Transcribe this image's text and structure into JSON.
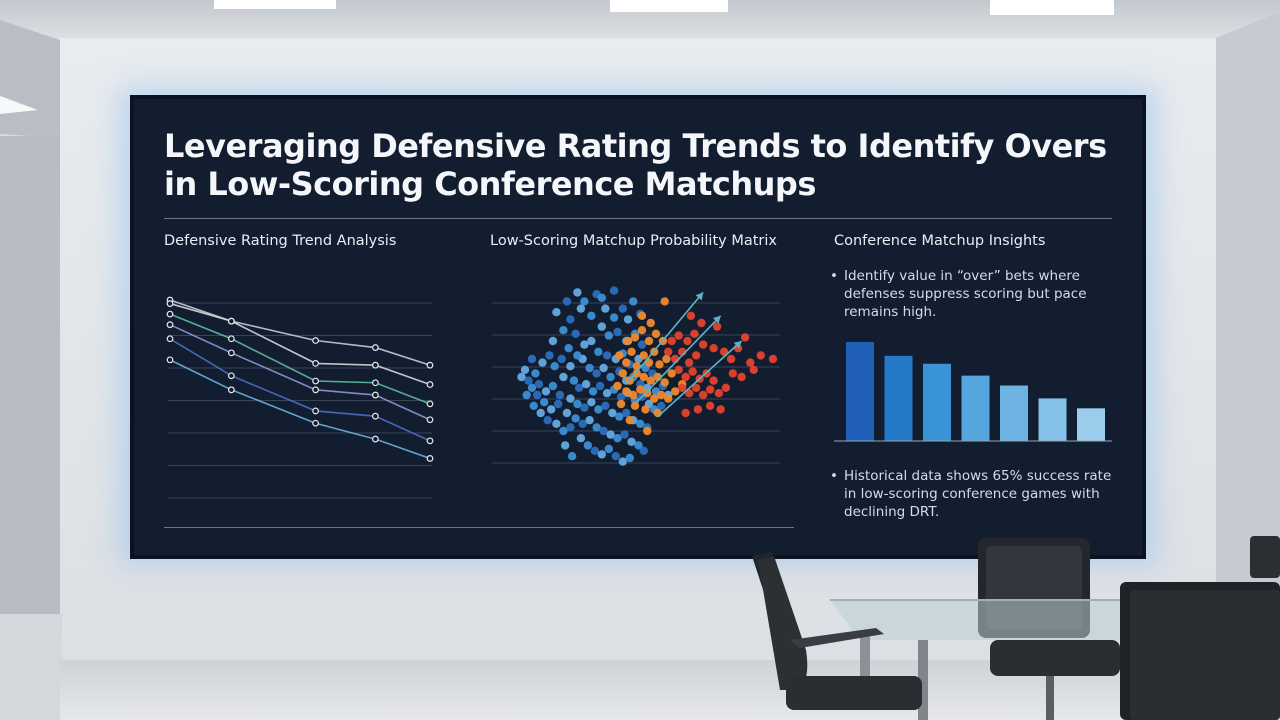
{
  "slide": {
    "title_line1": "Leveraging Defensive Rating Trends to Identify Overs",
    "title_line2": "in Low-Scoring Conference Matchups"
  },
  "panels": {
    "trend_heading": "Defensive Rating Trend Analysis",
    "matrix_heading": "Low-Scoring Matchup Probability Matrix",
    "insights_heading": "Conference Matchup Insights"
  },
  "insights": {
    "bullet_1": "Identify value in “over” bets where defenses suppress scoring but pace remains high.",
    "bullet_2": "Historical data shows 65% success rate in low-scoring conference games with declining DRT."
  },
  "colors": {
    "screen_bg": "#131d30",
    "line_series": [
      "#c9ccd3",
      "#d7d7db",
      "#5dbf9e",
      "#8b98d8",
      "#4f6fc8",
      "#6bb0e0"
    ],
    "scatter_cool": "#3d8fd6",
    "scatter_mid": "#f08a2c",
    "scatter_hot": "#e2432e",
    "arrow": "#5bb4c9",
    "bars": [
      "#1f5fb8",
      "#2478c8",
      "#3a93d6",
      "#55a5de",
      "#6cb3e4",
      "#86c1ea",
      "#9ccceb"
    ]
  },
  "chart_data": [
    {
      "type": "line",
      "x": [
        1,
        2,
        3,
        4,
        5
      ],
      "series": [
        {
          "values": [
            9.6,
            8.4,
            7.3,
            6.9,
            5.9
          ]
        },
        {
          "values": [
            9.4,
            8.4,
            6.0,
            5.9,
            4.8
          ]
        },
        {
          "values": [
            8.8,
            7.4,
            5.0,
            4.9,
            3.7
          ]
        },
        {
          "values": [
            8.2,
            6.6,
            4.5,
            4.2,
            2.8
          ]
        },
        {
          "values": [
            7.4,
            5.3,
            3.3,
            3.0,
            1.6
          ]
        },
        {
          "values": [
            6.2,
            4.5,
            2.6,
            1.7,
            0.6
          ]
        }
      ],
      "ylim": [
        0,
        10
      ],
      "grid": true
    },
    {
      "type": "scatter",
      "points": [
        {
          "x": 0.34,
          "y": 0.97,
          "g": "cool"
        },
        {
          "x": 0.38,
          "y": 0.92,
          "g": "cool"
        },
        {
          "x": 0.45,
          "y": 0.96,
          "g": "cool"
        },
        {
          "x": 0.5,
          "y": 0.88,
          "g": "cool"
        },
        {
          "x": 0.55,
          "y": 0.83,
          "g": "cool"
        },
        {
          "x": 0.6,
          "y": 0.88,
          "g": "cool"
        },
        {
          "x": 0.63,
          "y": 0.82,
          "g": "cool"
        },
        {
          "x": 0.66,
          "y": 0.92,
          "g": "cool"
        },
        {
          "x": 0.7,
          "y": 0.85,
          "g": "cool"
        },
        {
          "x": 0.48,
          "y": 0.78,
          "g": "cool"
        },
        {
          "x": 0.52,
          "y": 0.73,
          "g": "cool"
        },
        {
          "x": 0.57,
          "y": 0.75,
          "g": "cool"
        },
        {
          "x": 0.62,
          "y": 0.7,
          "g": "cool"
        },
        {
          "x": 0.67,
          "y": 0.74,
          "g": "cool"
        },
        {
          "x": 0.71,
          "y": 0.68,
          "g": "cool"
        },
        {
          "x": 0.42,
          "y": 0.7,
          "g": "cool"
        },
        {
          "x": 0.46,
          "y": 0.64,
          "g": "cool"
        },
        {
          "x": 0.51,
          "y": 0.62,
          "g": "cool"
        },
        {
          "x": 0.56,
          "y": 0.6,
          "g": "cool"
        },
        {
          "x": 0.6,
          "y": 0.63,
          "g": "cool"
        },
        {
          "x": 0.64,
          "y": 0.57,
          "g": "cool"
        },
        {
          "x": 0.69,
          "y": 0.6,
          "g": "cool"
        },
        {
          "x": 0.73,
          "y": 0.55,
          "g": "cool"
        },
        {
          "x": 0.77,
          "y": 0.52,
          "g": "cool"
        },
        {
          "x": 0.37,
          "y": 0.6,
          "g": "cool"
        },
        {
          "x": 0.41,
          "y": 0.55,
          "g": "cool"
        },
        {
          "x": 0.45,
          "y": 0.52,
          "g": "cool"
        },
        {
          "x": 0.49,
          "y": 0.55,
          "g": "cool"
        },
        {
          "x": 0.53,
          "y": 0.5,
          "g": "cool"
        },
        {
          "x": 0.58,
          "y": 0.53,
          "g": "cool"
        },
        {
          "x": 0.62,
          "y": 0.48,
          "g": "cool"
        },
        {
          "x": 0.66,
          "y": 0.5,
          "g": "cool"
        },
        {
          "x": 0.7,
          "y": 0.46,
          "g": "cool"
        },
        {
          "x": 0.74,
          "y": 0.44,
          "g": "cool"
        },
        {
          "x": 0.79,
          "y": 0.42,
          "g": "cool"
        },
        {
          "x": 0.83,
          "y": 0.45,
          "g": "cool"
        },
        {
          "x": 0.86,
          "y": 0.4,
          "g": "cool"
        },
        {
          "x": 0.32,
          "y": 0.48,
          "g": "cool"
        },
        {
          "x": 0.35,
          "y": 0.44,
          "g": "cool"
        },
        {
          "x": 0.39,
          "y": 0.46,
          "g": "cool"
        },
        {
          "x": 0.43,
          "y": 0.42,
          "g": "cool"
        },
        {
          "x": 0.47,
          "y": 0.45,
          "g": "cool"
        },
        {
          "x": 0.51,
          "y": 0.41,
          "g": "cool"
        },
        {
          "x": 0.55,
          "y": 0.43,
          "g": "cool"
        },
        {
          "x": 0.59,
          "y": 0.39,
          "g": "cool"
        },
        {
          "x": 0.63,
          "y": 0.41,
          "g": "cool"
        },
        {
          "x": 0.67,
          "y": 0.37,
          "g": "cool"
        },
        {
          "x": 0.71,
          "y": 0.39,
          "g": "cool"
        },
        {
          "x": 0.75,
          "y": 0.35,
          "g": "cool"
        },
        {
          "x": 0.78,
          "y": 0.32,
          "g": "cool"
        },
        {
          "x": 0.82,
          "y": 0.34,
          "g": "cool"
        },
        {
          "x": 0.3,
          "y": 0.38,
          "g": "cool"
        },
        {
          "x": 0.34,
          "y": 0.35,
          "g": "cool"
        },
        {
          "x": 0.38,
          "y": 0.33,
          "g": "cool"
        },
        {
          "x": 0.42,
          "y": 0.36,
          "g": "cool"
        },
        {
          "x": 0.46,
          "y": 0.32,
          "g": "cool"
        },
        {
          "x": 0.5,
          "y": 0.34,
          "g": "cool"
        },
        {
          "x": 0.54,
          "y": 0.3,
          "g": "cool"
        },
        {
          "x": 0.58,
          "y": 0.28,
          "g": "cool"
        },
        {
          "x": 0.62,
          "y": 0.3,
          "g": "cool"
        },
        {
          "x": 0.66,
          "y": 0.26,
          "g": "cool"
        },
        {
          "x": 0.7,
          "y": 0.24,
          "g": "cool"
        },
        {
          "x": 0.74,
          "y": 0.22,
          "g": "cool"
        },
        {
          "x": 0.28,
          "y": 0.3,
          "g": "cool"
        },
        {
          "x": 0.33,
          "y": 0.27,
          "g": "cool"
        },
        {
          "x": 0.37,
          "y": 0.24,
          "g": "cool"
        },
        {
          "x": 0.41,
          "y": 0.26,
          "g": "cool"
        },
        {
          "x": 0.45,
          "y": 0.22,
          "g": "cool"
        },
        {
          "x": 0.49,
          "y": 0.2,
          "g": "cool"
        },
        {
          "x": 0.53,
          "y": 0.18,
          "g": "cool"
        },
        {
          "x": 0.57,
          "y": 0.16,
          "g": "cool"
        },
        {
          "x": 0.61,
          "y": 0.18,
          "g": "cool"
        },
        {
          "x": 0.65,
          "y": 0.14,
          "g": "cool"
        },
        {
          "x": 0.69,
          "y": 0.12,
          "g": "cool"
        },
        {
          "x": 0.72,
          "y": 0.09,
          "g": "cool"
        },
        {
          "x": 0.36,
          "y": 0.16,
          "g": "cool"
        },
        {
          "x": 0.4,
          "y": 0.12,
          "g": "cool"
        },
        {
          "x": 0.44,
          "y": 0.09,
          "g": "cool"
        },
        {
          "x": 0.48,
          "y": 0.07,
          "g": "cool"
        },
        {
          "x": 0.52,
          "y": 0.1,
          "g": "cool"
        },
        {
          "x": 0.56,
          "y": 0.06,
          "g": "cool"
        },
        {
          "x": 0.6,
          "y": 0.03,
          "g": "cool"
        },
        {
          "x": 0.64,
          "y": 0.05,
          "g": "cool"
        },
        {
          "x": 0.24,
          "y": 0.4,
          "g": "cool"
        },
        {
          "x": 0.26,
          "y": 0.5,
          "g": "cool"
        },
        {
          "x": 0.21,
          "y": 0.56,
          "g": "cool"
        },
        {
          "x": 0.18,
          "y": 0.62,
          "g": "cool"
        },
        {
          "x": 0.14,
          "y": 0.58,
          "g": "cool"
        },
        {
          "x": 0.1,
          "y": 0.52,
          "g": "cool"
        },
        {
          "x": 0.06,
          "y": 0.48,
          "g": "cool"
        },
        {
          "x": 0.04,
          "y": 0.54,
          "g": "cool"
        },
        {
          "x": 0.08,
          "y": 0.44,
          "g": "cool"
        },
        {
          "x": 0.12,
          "y": 0.46,
          "g": "cool"
        },
        {
          "x": 0.16,
          "y": 0.42,
          "g": "cool"
        },
        {
          "x": 0.2,
          "y": 0.45,
          "g": "cool"
        },
        {
          "x": 0.23,
          "y": 0.35,
          "g": "cool"
        },
        {
          "x": 0.19,
          "y": 0.32,
          "g": "cool"
        },
        {
          "x": 0.15,
          "y": 0.36,
          "g": "cool"
        },
        {
          "x": 0.11,
          "y": 0.4,
          "g": "cool"
        },
        {
          "x": 0.13,
          "y": 0.3,
          "g": "cool"
        },
        {
          "x": 0.09,
          "y": 0.34,
          "g": "cool"
        },
        {
          "x": 0.17,
          "y": 0.26,
          "g": "cool"
        },
        {
          "x": 0.22,
          "y": 0.24,
          "g": "cool"
        },
        {
          "x": 0.26,
          "y": 0.2,
          "g": "cool"
        },
        {
          "x": 0.3,
          "y": 0.22,
          "g": "cool"
        },
        {
          "x": 0.2,
          "y": 0.7,
          "g": "cool"
        },
        {
          "x": 0.26,
          "y": 0.76,
          "g": "cool"
        },
        {
          "x": 0.3,
          "y": 0.82,
          "g": "cool"
        },
        {
          "x": 0.36,
          "y": 0.88,
          "g": "cool"
        },
        {
          "x": 0.42,
          "y": 0.84,
          "g": "cool"
        },
        {
          "x": 0.33,
          "y": 0.74,
          "g": "cool"
        },
        {
          "x": 0.38,
          "y": 0.68,
          "g": "cool"
        },
        {
          "x": 0.29,
          "y": 0.66,
          "g": "cool"
        },
        {
          "x": 0.25,
          "y": 0.6,
          "g": "cool"
        },
        {
          "x": 0.3,
          "y": 0.56,
          "g": "cool"
        },
        {
          "x": 0.34,
          "y": 0.62,
          "g": "cool"
        },
        {
          "x": 0.08,
          "y": 0.6,
          "g": "cool"
        },
        {
          "x": 0.02,
          "y": 0.5,
          "g": "cool"
        },
        {
          "x": 0.05,
          "y": 0.4,
          "g": "cool"
        },
        {
          "x": 0.28,
          "y": 0.92,
          "g": "cool"
        },
        {
          "x": 0.22,
          "y": 0.86,
          "g": "cool"
        },
        {
          "x": 0.48,
          "y": 0.94,
          "g": "cool"
        },
        {
          "x": 0.55,
          "y": 0.98,
          "g": "cool"
        },
        {
          "x": 0.27,
          "y": 0.12,
          "g": "cool"
        },
        {
          "x": 0.31,
          "y": 0.06,
          "g": "cool"
        },
        {
          "x": 0.58,
          "y": 0.62,
          "g": "mid"
        },
        {
          "x": 0.62,
          "y": 0.58,
          "g": "mid"
        },
        {
          "x": 0.65,
          "y": 0.64,
          "g": "mid"
        },
        {
          "x": 0.68,
          "y": 0.56,
          "g": "mid"
        },
        {
          "x": 0.72,
          "y": 0.62,
          "g": "mid"
        },
        {
          "x": 0.75,
          "y": 0.58,
          "g": "mid"
        },
        {
          "x": 0.78,
          "y": 0.64,
          "g": "mid"
        },
        {
          "x": 0.81,
          "y": 0.57,
          "g": "mid"
        },
        {
          "x": 0.85,
          "y": 0.6,
          "g": "mid"
        },
        {
          "x": 0.6,
          "y": 0.52,
          "g": "mid"
        },
        {
          "x": 0.64,
          "y": 0.48,
          "g": "mid"
        },
        {
          "x": 0.68,
          "y": 0.52,
          "g": "mid"
        },
        {
          "x": 0.72,
          "y": 0.5,
          "g": "mid"
        },
        {
          "x": 0.76,
          "y": 0.48,
          "g": "mid"
        },
        {
          "x": 0.8,
          "y": 0.5,
          "g": "mid"
        },
        {
          "x": 0.84,
          "y": 0.47,
          "g": "mid"
        },
        {
          "x": 0.88,
          "y": 0.52,
          "g": "mid"
        },
        {
          "x": 0.62,
          "y": 0.42,
          "g": "mid"
        },
        {
          "x": 0.66,
          "y": 0.4,
          "g": "mid"
        },
        {
          "x": 0.7,
          "y": 0.43,
          "g": "mid"
        },
        {
          "x": 0.74,
          "y": 0.41,
          "g": "mid"
        },
        {
          "x": 0.78,
          "y": 0.38,
          "g": "mid"
        },
        {
          "x": 0.82,
          "y": 0.4,
          "g": "mid"
        },
        {
          "x": 0.86,
          "y": 0.38,
          "g": "mid"
        },
        {
          "x": 0.9,
          "y": 0.42,
          "g": "mid"
        },
        {
          "x": 0.63,
          "y": 0.7,
          "g": "mid"
        },
        {
          "x": 0.67,
          "y": 0.72,
          "g": "mid"
        },
        {
          "x": 0.71,
          "y": 0.76,
          "g": "mid"
        },
        {
          "x": 0.75,
          "y": 0.7,
          "g": "mid"
        },
        {
          "x": 0.79,
          "y": 0.74,
          "g": "mid"
        },
        {
          "x": 0.83,
          "y": 0.7,
          "g": "mid"
        },
        {
          "x": 0.76,
          "y": 0.8,
          "g": "mid"
        },
        {
          "x": 0.71,
          "y": 0.84,
          "g": "mid"
        },
        {
          "x": 0.67,
          "y": 0.34,
          "g": "mid"
        },
        {
          "x": 0.73,
          "y": 0.32,
          "g": "mid"
        },
        {
          "x": 0.8,
          "y": 0.3,
          "g": "mid"
        },
        {
          "x": 0.59,
          "y": 0.35,
          "g": "mid"
        },
        {
          "x": 0.64,
          "y": 0.26,
          "g": "mid"
        },
        {
          "x": 0.57,
          "y": 0.45,
          "g": "mid"
        },
        {
          "x": 0.94,
          "y": 0.46,
          "g": "mid"
        },
        {
          "x": 0.74,
          "y": 0.2,
          "g": "mid"
        },
        {
          "x": 0.84,
          "y": 0.92,
          "g": "mid"
        },
        {
          "x": 0.86,
          "y": 0.64,
          "g": "hot"
        },
        {
          "x": 0.9,
          "y": 0.6,
          "g": "hot"
        },
        {
          "x": 0.94,
          "y": 0.64,
          "g": "hot"
        },
        {
          "x": 0.98,
          "y": 0.58,
          "g": "hot"
        },
        {
          "x": 1.02,
          "y": 0.62,
          "g": "hot"
        },
        {
          "x": 0.92,
          "y": 0.54,
          "g": "hot"
        },
        {
          "x": 0.96,
          "y": 0.5,
          "g": "hot"
        },
        {
          "x": 1.0,
          "y": 0.53,
          "g": "hot"
        },
        {
          "x": 1.04,
          "y": 0.49,
          "g": "hot"
        },
        {
          "x": 1.08,
          "y": 0.52,
          "g": "hot"
        },
        {
          "x": 1.12,
          "y": 0.48,
          "g": "hot"
        },
        {
          "x": 0.94,
          "y": 0.44,
          "g": "hot"
        },
        {
          "x": 0.98,
          "y": 0.41,
          "g": "hot"
        },
        {
          "x": 1.02,
          "y": 0.44,
          "g": "hot"
        },
        {
          "x": 1.06,
          "y": 0.4,
          "g": "hot"
        },
        {
          "x": 1.1,
          "y": 0.43,
          "g": "hot"
        },
        {
          "x": 1.15,
          "y": 0.41,
          "g": "hot"
        },
        {
          "x": 1.19,
          "y": 0.44,
          "g": "hot"
        },
        {
          "x": 0.88,
          "y": 0.7,
          "g": "hot"
        },
        {
          "x": 0.92,
          "y": 0.73,
          "g": "hot"
        },
        {
          "x": 0.97,
          "y": 0.7,
          "g": "hot"
        },
        {
          "x": 1.01,
          "y": 0.74,
          "g": "hot"
        },
        {
          "x": 1.06,
          "y": 0.68,
          "g": "hot"
        },
        {
          "x": 1.12,
          "y": 0.66,
          "g": "hot"
        },
        {
          "x": 1.18,
          "y": 0.64,
          "g": "hot"
        },
        {
          "x": 1.22,
          "y": 0.6,
          "g": "hot"
        },
        {
          "x": 1.26,
          "y": 0.66,
          "g": "hot"
        },
        {
          "x": 1.3,
          "y": 0.72,
          "g": "hot"
        },
        {
          "x": 1.33,
          "y": 0.58,
          "g": "hot"
        },
        {
          "x": 1.23,
          "y": 0.52,
          "g": "hot"
        },
        {
          "x": 1.28,
          "y": 0.5,
          "g": "hot"
        },
        {
          "x": 1.35,
          "y": 0.54,
          "g": "hot"
        },
        {
          "x": 1.1,
          "y": 0.34,
          "g": "hot"
        },
        {
          "x": 1.16,
          "y": 0.32,
          "g": "hot"
        },
        {
          "x": 1.03,
          "y": 0.32,
          "g": "hot"
        },
        {
          "x": 0.96,
          "y": 0.3,
          "g": "hot"
        },
        {
          "x": 1.05,
          "y": 0.8,
          "g": "hot"
        },
        {
          "x": 1.14,
          "y": 0.78,
          "g": "hot"
        },
        {
          "x": 0.99,
          "y": 0.84,
          "g": "hot"
        },
        {
          "x": 1.39,
          "y": 0.62,
          "g": "hot"
        },
        {
          "x": 1.46,
          "y": 0.6,
          "g": "hot"
        }
      ],
      "xlim": [
        0,
        1.5
      ],
      "ylim": [
        0,
        1
      ],
      "grid": true
    },
    {
      "type": "bar",
      "values": [
        100,
        86,
        78,
        66,
        56,
        43,
        33
      ],
      "ylim": [
        0,
        105
      ]
    }
  ]
}
